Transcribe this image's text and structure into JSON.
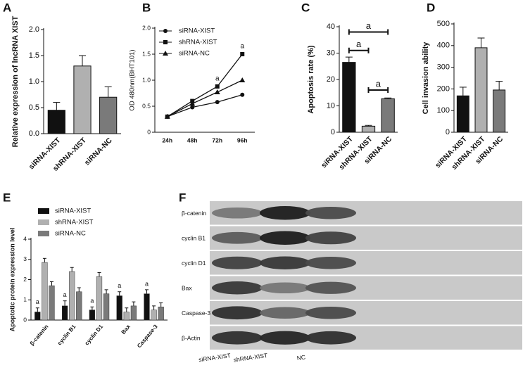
{
  "chart_data": [
    {
      "panel": "A",
      "type": "bar",
      "ylabel": "Relative expression of lncRNA XIST",
      "categories": [
        "siRNA-XIST",
        "shRNA-XIST",
        "siRNA-NC"
      ],
      "values": [
        0.45,
        1.3,
        0.7
      ],
      "errors": [
        0.15,
        0.2,
        0.2
      ],
      "colors": [
        "#111111",
        "#b0b0b0",
        "#7a7a7a"
      ],
      "ylim": [
        0,
        2
      ],
      "yticks": [
        {
          "value": 0,
          "label": "0.0"
        },
        0.5,
        {
          "value": 1,
          "label": "1.0"
        },
        1.5,
        {
          "value": 2,
          "label": "2.0"
        }
      ]
    },
    {
      "panel": "B",
      "type": "line",
      "ylabel": "OD 480nm(BHT101)",
      "categories": [
        "24h",
        "48h",
        "72h",
        "96h"
      ],
      "series": [
        {
          "name": "siRNA-XIST",
          "marker": "circle",
          "color": "#111111",
          "values": [
            0.3,
            0.48,
            0.58,
            0.72
          ]
        },
        {
          "name": "shRNA-XIST",
          "marker": "square",
          "color": "#111111",
          "values": [
            0.3,
            0.6,
            0.88,
            1.5
          ]
        },
        {
          "name": "siRNA-NC",
          "marker": "triangle",
          "color": "#111111",
          "values": [
            0.3,
            0.55,
            0.77,
            1.0
          ]
        }
      ],
      "ylim": [
        0,
        2
      ],
      "yticks": [
        0,
        0.5,
        {
          "value": 1,
          "label": "1.0"
        },
        1.5,
        {
          "value": 2,
          "label": "2.0"
        }
      ],
      "legend": "upper left",
      "annotations": [
        "a",
        "a"
      ]
    },
    {
      "panel": "C",
      "type": "bar",
      "ylabel": "Apoptosis rate (%)",
      "categories": [
        "siRNA-XIST",
        "shRNA-XIST",
        "siRNA-NC"
      ],
      "values": [
        26.5,
        2.3,
        12.7
      ],
      "errors": [
        2,
        0.3,
        0.3
      ],
      "colors": [
        "#111111",
        "#b0b0b0",
        "#7a7a7a"
      ],
      "ylim": [
        0,
        40
      ],
      "yticks": [
        0,
        10,
        20,
        30,
        40
      ],
      "annotations": [
        "a",
        "a",
        "a"
      ]
    },
    {
      "panel": "D",
      "type": "bar",
      "ylabel": "Cell invasion ability",
      "categories": [
        "siRNA-XIST",
        "shRNA-XIST",
        "siRNA-NC"
      ],
      "values": [
        168,
        390,
        195
      ],
      "errors": [
        40,
        45,
        40
      ],
      "colors": [
        "#111111",
        "#b0b0b0",
        "#7a7a7a"
      ],
      "ylim": [
        0,
        500
      ],
      "yticks": [
        0,
        100,
        200,
        300,
        400,
        500
      ]
    },
    {
      "panel": "E",
      "type": "grouped-bar",
      "ylabel": "Apoptotic protein expression level",
      "categories": [
        "β-catenin",
        "cyclin B1",
        "cyclin D1",
        "Bax",
        "Caspase-3"
      ],
      "series": [
        {
          "name": "siRNA-XIST",
          "color": "#111111",
          "values": [
            0.4,
            0.7,
            0.5,
            1.2,
            1.3
          ],
          "errors": [
            0.2,
            0.25,
            0.15,
            0.2,
            0.2
          ]
        },
        {
          "name": "shRNA-XIST",
          "color": "#b0b0b0",
          "values": [
            2.85,
            2.4,
            2.15,
            0.4,
            0.5
          ],
          "errors": [
            0.2,
            0.2,
            0.2,
            0.2,
            0.2
          ]
        },
        {
          "name": "siRNA-NC",
          "color": "#7a7a7a",
          "values": [
            1.7,
            1.4,
            1.3,
            0.7,
            0.65
          ],
          "errors": [
            0.2,
            0.2,
            0.2,
            0.2,
            0.2
          ]
        }
      ],
      "ylim": [
        0,
        4
      ],
      "yticks": [
        0,
        1,
        2,
        3,
        4
      ],
      "legend": "upper left",
      "annotations": [
        "a",
        "a",
        "a",
        "a",
        "a"
      ]
    }
  ],
  "blot": {
    "panel": "F",
    "rows": [
      "β-catenin",
      "cyclin B1",
      "cyclin D1",
      "Bax",
      "Caspase-3",
      "β-Actin"
    ],
    "columns": [
      "siRNA-XIST",
      "shRNA-XIST",
      "NC"
    ]
  }
}
